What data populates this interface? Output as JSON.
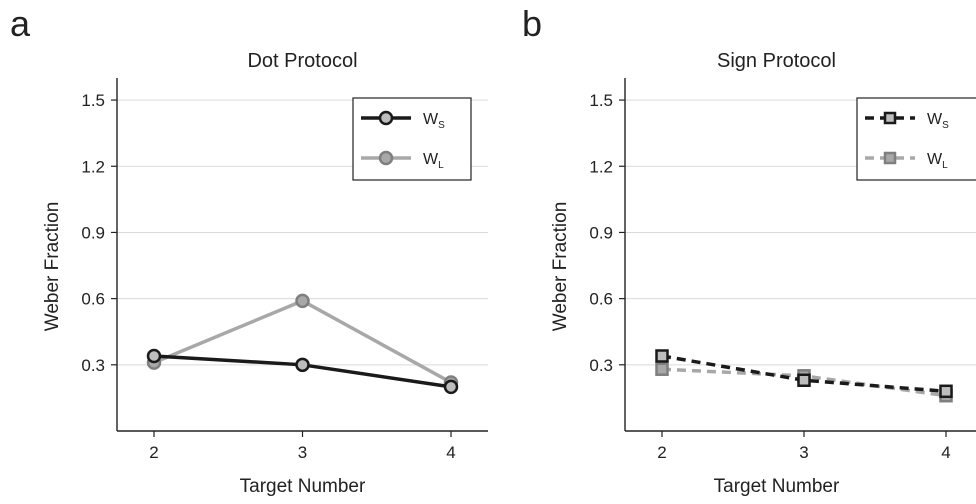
{
  "chart_data": [
    {
      "type": "line",
      "panel_label": "a",
      "title": "Dot Protocol",
      "xlabel": "Target Number",
      "ylabel": "Weber Fraction",
      "x": [
        2,
        3,
        4
      ],
      "xticks": [
        "2",
        "3",
        "4"
      ],
      "yticks": [
        "0.3",
        "0.6",
        "0.9",
        "1.2",
        "1.5"
      ],
      "ylim": [
        0,
        1.6
      ],
      "grid": "horizontal",
      "legend_position": "top-right",
      "series": [
        {
          "name": "W",
          "subscript": "S",
          "values": [
            0.34,
            0.3,
            0.2
          ],
          "color": "#1a1a1a",
          "marker": "circle",
          "dashed": false
        },
        {
          "name": "W",
          "subscript": "L",
          "values": [
            0.31,
            0.59,
            0.22
          ],
          "color": "#a8a8a8",
          "marker": "circle",
          "dashed": false
        }
      ]
    },
    {
      "type": "line",
      "panel_label": "b",
      "title": "Sign Protocol",
      "xlabel": "Target Number",
      "ylabel": "Weber Fraction",
      "x": [
        2,
        3,
        4
      ],
      "xticks": [
        "2",
        "3",
        "4"
      ],
      "yticks": [
        "0.3",
        "0.6",
        "0.9",
        "1.2",
        "1.5"
      ],
      "ylim": [
        0,
        1.6
      ],
      "grid": "horizontal",
      "legend_position": "top-right",
      "series": [
        {
          "name": "W",
          "subscript": "S",
          "values": [
            0.34,
            0.23,
            0.18
          ],
          "color": "#1a1a1a",
          "marker": "square",
          "dashed": true
        },
        {
          "name": "W",
          "subscript": "L",
          "values": [
            0.28,
            0.25,
            0.16
          ],
          "color": "#a8a8a8",
          "marker": "square",
          "dashed": true
        }
      ]
    }
  ]
}
